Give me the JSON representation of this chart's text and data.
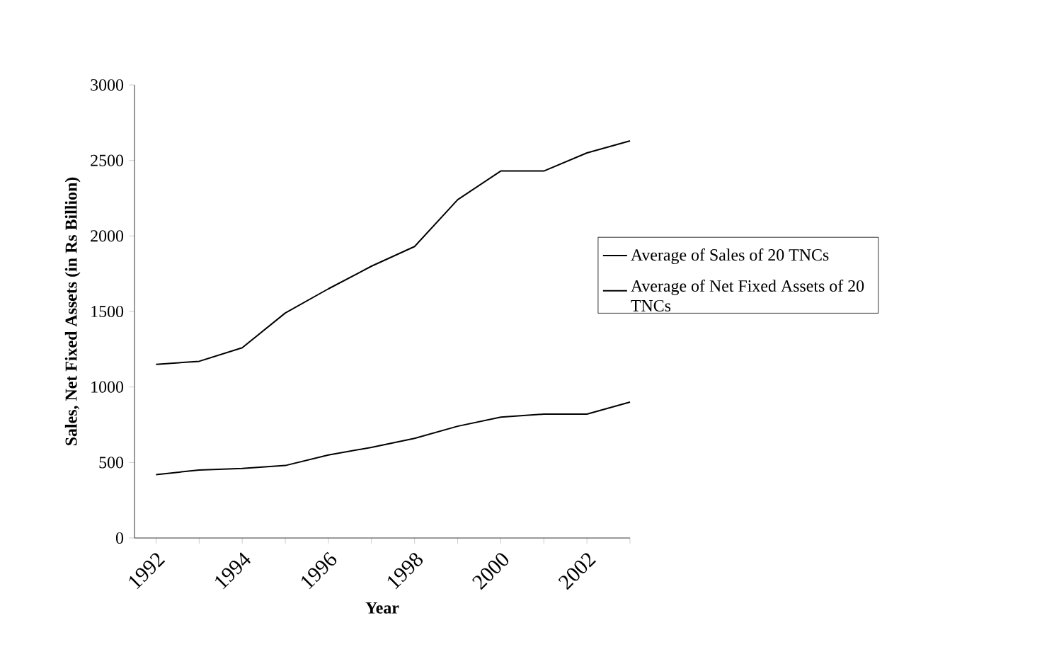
{
  "chart_data": {
    "type": "line",
    "xlabel": "Year",
    "ylabel": "Sales, Net Fixed Assets (in Rs Billion)",
    "categories": [
      "1992",
      null,
      "1994",
      null,
      "1996",
      null,
      "1998",
      null,
      "2000",
      null,
      "2002",
      null
    ],
    "series": [
      {
        "name": "Average of Sales of 20 TNCs",
        "color": "#000000",
        "values": [
          1150,
          1170,
          1260,
          1490,
          1650,
          1800,
          1930,
          2240,
          2430,
          2430,
          2550,
          2630
        ]
      },
      {
        "name": "Average of Net Fixed Assets of 20 TNCs",
        "color": "#000000",
        "values": [
          420,
          450,
          460,
          480,
          550,
          600,
          660,
          740,
          800,
          820,
          820,
          900
        ]
      }
    ],
    "ylim": [
      0,
      3000
    ],
    "yticks": [
      0,
      500,
      1000,
      1500,
      2000,
      2500,
      3000
    ],
    "legend": "right",
    "grid": false,
    "marker": "none",
    "line_style": "solid"
  }
}
